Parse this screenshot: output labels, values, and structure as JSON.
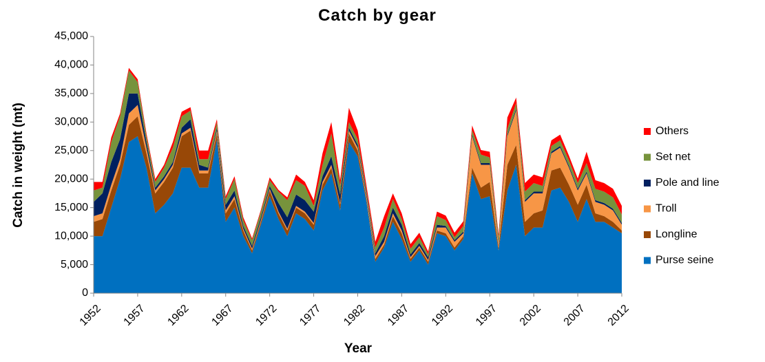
{
  "chart_data": {
    "type": "stacked-area",
    "title": "Catch by gear",
    "x_label": "Year",
    "y_label": "Catch in weight (mt)",
    "x": [
      1952,
      1953,
      1954,
      1955,
      1956,
      1957,
      1958,
      1959,
      1960,
      1961,
      1962,
      1963,
      1964,
      1965,
      1966,
      1967,
      1968,
      1969,
      1970,
      1971,
      1972,
      1973,
      1974,
      1975,
      1976,
      1977,
      1978,
      1979,
      1980,
      1981,
      1982,
      1983,
      1984,
      1985,
      1986,
      1987,
      1988,
      1989,
      1990,
      1991,
      1992,
      1993,
      1994,
      1995,
      1996,
      1997,
      1998,
      1999,
      2000,
      2001,
      2002,
      2003,
      2004,
      2005,
      2006,
      2007,
      2008,
      2009,
      2010,
      2011,
      2012
    ],
    "xlim": [
      1952,
      2012
    ],
    "xticks": [
      1952,
      1957,
      1962,
      1967,
      1972,
      1977,
      1982,
      1987,
      1992,
      1997,
      2002,
      2007,
      2012
    ],
    "ylim": [
      0,
      45000
    ],
    "yticks": [
      {
        "value": 0,
        "label": "0"
      },
      {
        "value": 5000,
        "label": "5,000"
      },
      {
        "value": 10000,
        "label": "10,000"
      },
      {
        "value": 15000,
        "label": "15,000"
      },
      {
        "value": 20000,
        "label": "20,000"
      },
      {
        "value": 25000,
        "label": "25,000"
      },
      {
        "value": 30000,
        "label": "30,000"
      },
      {
        "value": 35000,
        "label": "35,000"
      },
      {
        "value": 40000,
        "label": "40,000"
      },
      {
        "value": 45000,
        "label": "45,000"
      }
    ],
    "series": [
      {
        "name": "Purse seine",
        "color": "#0070c0",
        "values": [
          10000,
          10000,
          15000,
          20000,
          26500,
          27500,
          22000,
          14000,
          15500,
          17500,
          22000,
          22000,
          18500,
          18500,
          27000,
          12500,
          15000,
          10000,
          7000,
          12000,
          17000,
          13000,
          10000,
          14000,
          13000,
          11000,
          18000,
          21000,
          14500,
          26500,
          24000,
          16000,
          5500,
          8000,
          12500,
          9500,
          5500,
          7500,
          5000,
          10500,
          10000,
          7500,
          9500,
          21000,
          16500,
          17000,
          7500,
          18000,
          22500,
          10000,
          11500,
          11500,
          18000,
          18500,
          16000,
          12500,
          16500,
          12500,
          12500,
          11500,
          10500
        ]
      },
      {
        "name": "Longline",
        "color": "#984807",
        "values": [
          2500,
          3000,
          3000,
          2500,
          3000,
          3500,
          2500,
          3500,
          4000,
          4500,
          5500,
          6500,
          2500,
          2500,
          1000,
          1500,
          1500,
          1000,
          500,
          500,
          1000,
          1000,
          1000,
          1000,
          1000,
          1000,
          1000,
          1000,
          1000,
          1500,
          1000,
          500,
          500,
          500,
          1000,
          1000,
          500,
          500,
          500,
          500,
          500,
          500,
          500,
          1000,
          2000,
          2500,
          500,
          4500,
          3500,
          2500,
          2500,
          3000,
          3500,
          3500,
          3000,
          3000,
          2500,
          1500,
          1000,
          1000,
          500
        ]
      },
      {
        "name": "Troll",
        "color": "#f79646",
        "values": [
          1000,
          1000,
          1000,
          1000,
          2000,
          2000,
          1000,
          500,
          500,
          500,
          500,
          500,
          500,
          500,
          500,
          500,
          500,
          300,
          300,
          300,
          300,
          300,
          300,
          300,
          300,
          300,
          500,
          500,
          300,
          500,
          500,
          500,
          500,
          500,
          500,
          500,
          300,
          300,
          300,
          500,
          1000,
          1000,
          500,
          5500,
          4000,
          3000,
          500,
          5000,
          6000,
          3500,
          3500,
          3000,
          3000,
          3500,
          3000,
          2500,
          2000,
          2000,
          2000,
          2000,
          1000
        ]
      },
      {
        "name": "Pole and line",
        "color": "#002060",
        "values": [
          2500,
          3500,
          4000,
          3500,
          3500,
          2000,
          1000,
          500,
          500,
          500,
          1000,
          1500,
          1000,
          500,
          500,
          1000,
          1000,
          500,
          500,
          500,
          500,
          1500,
          2000,
          2000,
          2000,
          2000,
          1000,
          1500,
          1500,
          500,
          500,
          500,
          500,
          1000,
          1000,
          1000,
          500,
          500,
          500,
          500,
          300,
          300,
          300,
          300,
          300,
          300,
          300,
          300,
          300,
          300,
          300,
          300,
          300,
          300,
          300,
          300,
          300,
          300,
          300,
          300,
          300
        ]
      },
      {
        "name": "Set net",
        "color": "#77933c",
        "values": [
          2000,
          1000,
          3500,
          4000,
          4000,
          2000,
          1000,
          1000,
          1500,
          2500,
          2000,
          1500,
          1000,
          1500,
          1000,
          1000,
          2000,
          1000,
          1000,
          1000,
          1000,
          2000,
          3000,
          2500,
          2500,
          1000,
          2000,
          4000,
          1500,
          1000,
          1000,
          500,
          1000,
          1500,
          1500,
          1000,
          1000,
          1000,
          500,
          1500,
          1000,
          500,
          1000,
          800,
          1500,
          1000,
          1000,
          1000,
          1000,
          1500,
          1500,
          1000,
          1000,
          1000,
          1000,
          1000,
          1500,
          2000,
          2000,
          2000,
          1500
        ]
      },
      {
        "name": "Others",
        "color": "#ff0000",
        "values": [
          1500,
          1000,
          800,
          500,
          500,
          500,
          500,
          500,
          500,
          1000,
          800,
          600,
          1500,
          1500,
          500,
          500,
          500,
          500,
          300,
          300,
          500,
          300,
          500,
          1000,
          700,
          1000,
          2000,
          2000,
          1000,
          2500,
          1500,
          800,
          1000,
          2000,
          1000,
          1000,
          800,
          800,
          500,
          800,
          800,
          800,
          800,
          800,
          800,
          1000,
          500,
          2000,
          1000,
          1500,
          1500,
          1500,
          1000,
          1000,
          800,
          800,
          2000,
          1500,
          1500,
          1500,
          1500
        ]
      }
    ]
  }
}
